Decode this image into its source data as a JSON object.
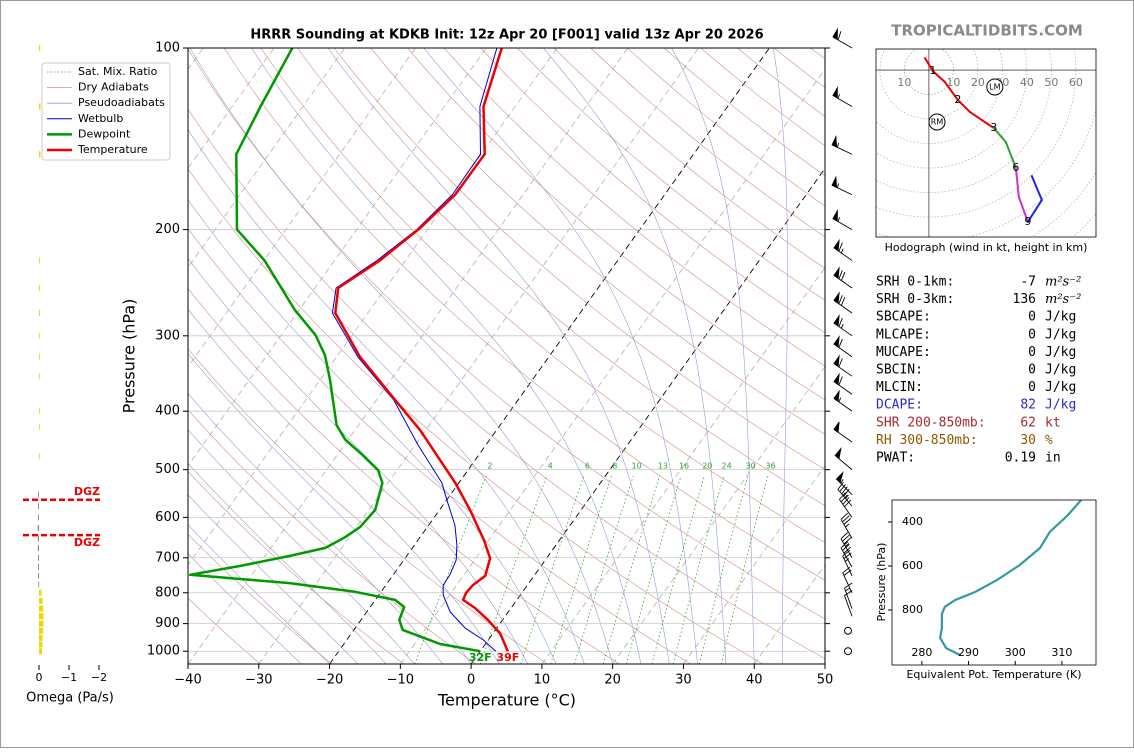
{
  "chart_data": {
    "type": "skewt",
    "title": "HRRR Sounding at KDKB Init: 12z Apr 20 [F001] valid 13z Apr 20 2026",
    "watermark": "TROPICALTIDBITS.COM",
    "xlabel": "Temperature (°C)",
    "ylabel": "Pressure (hPa)",
    "xlim": [
      -40,
      50
    ],
    "ylim": [
      1050,
      100
    ],
    "xticks": [
      {
        "value": -40,
        "label": "−40"
      },
      {
        "value": -30,
        "label": "−30"
      },
      {
        "value": -20,
        "label": "−20"
      },
      {
        "value": -10,
        "label": "−10"
      },
      0,
      10,
      20,
      30,
      40,
      50
    ],
    "yticks": [
      100,
      200,
      300,
      400,
      500,
      600,
      700,
      800,
      900,
      1000
    ],
    "grid": true,
    "legend": "upper left",
    "isotherm_highlights": [
      -20,
      0
    ],
    "background": {
      "mixing_ratio": {
        "name": "Sat. Mix. Ratio",
        "color": "#33a033",
        "labels": [
          2,
          4,
          6,
          8,
          10,
          13,
          16,
          20,
          24,
          30,
          36
        ]
      },
      "dry_adiabats": {
        "name": "Dry Adiabats",
        "color": "#d98a8a"
      },
      "moist_adiabats": {
        "name": "Pseudoadiabats",
        "color": "#9a9ad6"
      }
    },
    "series": [
      {
        "name": "Wetbulb",
        "color": "#0000cc",
        "width": 1,
        "pressure": [
          1000,
          958,
          915,
          861,
          807,
          777,
          747,
          706,
          667,
          618,
          561,
          526,
          455,
          383,
          325,
          275,
          250,
          225,
          200,
          175,
          150,
          125,
          100
        ],
        "values": [
          2.2,
          -0.7,
          -4.5,
          -8.2,
          -10.9,
          -11.9,
          -12,
          -12.6,
          -14,
          -16.3,
          -20,
          -22.4,
          -29.6,
          -37.6,
          -47,
          -55,
          -57,
          -54,
          -51.5,
          -50,
          -50.1,
          -55,
          -58.5
        ]
      },
      {
        "name": "Dewpoint",
        "color": "#009900",
        "width": 2.5,
        "surface_label": "32F",
        "pressure": [
          1000,
          973,
          922,
          887,
          845,
          822,
          797,
          771,
          747,
          722,
          695,
          674,
          647,
          622,
          583,
          526,
          501,
          473,
          446,
          422,
          355,
          323,
          299,
          272,
          225,
          200,
          150,
          125,
          100
        ],
        "values": [
          0,
          -6.4,
          -13.1,
          -14.6,
          -15.2,
          -17.2,
          -23.7,
          -33.8,
          -48.7,
          -42.5,
          -36.5,
          -32.3,
          -30.6,
          -29.5,
          -29.1,
          -30.8,
          -32.7,
          -36.4,
          -40.4,
          -43.1,
          -48.6,
          -51.8,
          -55.2,
          -60.6,
          -69.9,
          -76.9,
          -84.6,
          -86,
          -87.4
        ]
      },
      {
        "name": "Temperature",
        "color": "#ee0000",
        "width": 2.5,
        "surface_label": "39F",
        "pressure": [
          1000,
          936,
          887,
          848,
          822,
          800,
          777,
          750,
          701,
          654,
          583,
          526,
          430,
          383,
          325,
          275,
          250,
          225,
          199,
          175,
          150,
          125,
          100
        ],
        "values": [
          3.9,
          1.1,
          -2.1,
          -5.1,
          -7.6,
          -7.9,
          -7.7,
          -6.9,
          -8.0,
          -10.7,
          -15.7,
          -20.5,
          -30.8,
          -37.4,
          -46.7,
          -54.6,
          -56.7,
          -53.6,
          -51.2,
          -49.6,
          -49.5,
          -54.5,
          -57.8
        ]
      }
    ],
    "winds": {
      "pressure": [
        100,
        125,
        150,
        175,
        200,
        225,
        250,
        275,
        300,
        325,
        350,
        375,
        400,
        450,
        500,
        550,
        575,
        600,
        650,
        700,
        725,
        750,
        800,
        850,
        875,
        925,
        1000
      ],
      "speed": [
        60,
        55,
        55,
        55,
        55,
        65,
        70,
        70,
        65,
        60,
        60,
        60,
        55,
        50,
        50,
        55,
        45,
        40,
        35,
        35,
        30,
        25,
        20,
        15,
        10,
        0,
        0
      ],
      "direction": [
        300,
        300,
        295,
        295,
        300,
        305,
        305,
        305,
        305,
        305,
        305,
        305,
        305,
        305,
        310,
        315,
        320,
        325,
        330,
        330,
        330,
        335,
        335,
        340,
        340,
        0,
        0
      ]
    },
    "omega": {
      "xlabel": "Omega (Pa/s)",
      "xlim": [
        0.5,
        -2
      ],
      "xticks": [
        0,
        {
          "value": -1,
          "label": "−1"
        },
        {
          "value": -2,
          "label": "−2"
        }
      ],
      "negative_color": "#f2d600",
      "positive_color": "#888888",
      "pressure": [
        100,
        125,
        150,
        225,
        250,
        275,
        300,
        325,
        350,
        400,
        425,
        475,
        550,
        575,
        600,
        625,
        650,
        675,
        700,
        725,
        750,
        775,
        800,
        825,
        850,
        875,
        900,
        925,
        950,
        975,
        1000
      ],
      "values": [
        -0.04,
        -0.05,
        -0.05,
        -0.02,
        -0.03,
        -0.03,
        -0.02,
        -0.02,
        -0.02,
        -0.02,
        -0.02,
        -0.02,
        0.03,
        0.03,
        0.03,
        0.04,
        0.04,
        0.04,
        0.03,
        0.03,
        0.03,
        0.02,
        -0.08,
        -0.12,
        -0.14,
        -0.15,
        -0.15,
        -0.14,
        -0.12,
        -0.11,
        -0.1
      ],
      "dgz": [
        {
          "pressure": 561,
          "label": "DGZ"
        },
        {
          "pressure": 642,
          "label": "DGZ"
        }
      ],
      "dgz_color": "#ee0000"
    },
    "hodograph": {
      "caption": "Hodograph (wind in kt, height in km)",
      "xlim": [
        -21.6,
        68.2
      ],
      "ylim": [
        -68.2,
        8.6
      ],
      "ring_ticks": [
        {
          "value": -10,
          "label": "10"
        },
        10,
        20,
        30,
        40,
        50,
        60
      ],
      "u": [
        -1.6,
        1.6,
        6.5,
        11.8,
        16.7,
        26.5,
        31.4,
        35.5,
        36.7,
        40.4,
        46.1,
        42.0
      ],
      "v": [
        4.9,
        -0.4,
        -4.9,
        -12.2,
        -17.1,
        -23.7,
        -29.4,
        -40.0,
        -51.8,
        -62.0,
        -53.1,
        -43.3
      ],
      "height_km": [
        0,
        1,
        1.5,
        2,
        2.5,
        3,
        4.5,
        6,
        7.5,
        9,
        10.5,
        12
      ],
      "labeled_heights": [
        1,
        2,
        3,
        6,
        9
      ],
      "segment_tops": [
        3,
        6,
        9,
        12
      ],
      "segment_colors": [
        "#ee0000",
        "#33a033",
        "#cc33cc",
        "#2222ee"
      ],
      "markers": [
        {
          "label": "RM",
          "u": 3.3,
          "v": -21.2
        },
        {
          "label": "LM",
          "u": 26.9,
          "v": -6.9
        }
      ]
    },
    "indices": {
      "rows": [
        {
          "label": "SRH 0-1km:",
          "value": -7,
          "unit": "m²s⁻²",
          "color": "#000000"
        },
        {
          "label": "SRH 0-3km:",
          "value": 136,
          "unit": "m²s⁻²",
          "color": "#000000"
        },
        {
          "label": "SBCAPE:",
          "value": 0,
          "unit": "J/kg",
          "color": "#000000"
        },
        {
          "label": "MLCAPE:",
          "value": 0,
          "unit": "J/kg",
          "color": "#000000"
        },
        {
          "label": "MUCAPE:",
          "value": 0,
          "unit": "J/kg",
          "color": "#000000"
        },
        {
          "label": "SBCIN:",
          "value": 0,
          "unit": "J/kg",
          "color": "#000000"
        },
        {
          "label": "MLCIN:",
          "value": 0,
          "unit": "J/kg",
          "color": "#000000"
        },
        {
          "label": "DCAPE:",
          "value": 82,
          "unit": "J/kg",
          "color": "#2a2acc"
        },
        {
          "label": "SHR 200-850mb:",
          "value": 62,
          "unit": "kt",
          "color": "#a52a2a"
        },
        {
          "label": "RH 300-850mb:",
          "value": 30,
          "unit": "%",
          "color": "#8b5a00"
        },
        {
          "label": "PWAT:",
          "value": 0.19,
          "unit": "in",
          "color": "#000000"
        }
      ]
    },
    "theta_e": {
      "xlabel": "Equivalent Pot. Temperature (K)",
      "ylabel": "Pressure (hPa)",
      "color": "#3399aa",
      "xlim": [
        273.6,
        317.3
      ],
      "ylim": [
        1050,
        300
      ],
      "xticks": [
        280,
        290,
        300,
        310
      ],
      "yticks": [
        400,
        600,
        800
      ],
      "pressure": [
        300,
        368,
        445,
        518,
        595,
        664,
        718,
        755,
        786,
        818,
        882,
        927,
        973,
        1005
      ],
      "values": [
        314.1,
        311.3,
        307.4,
        305.3,
        301.0,
        296.1,
        291.4,
        287.1,
        284.9,
        284.3,
        284.3,
        283.9,
        285.2,
        288.2
      ]
    }
  }
}
